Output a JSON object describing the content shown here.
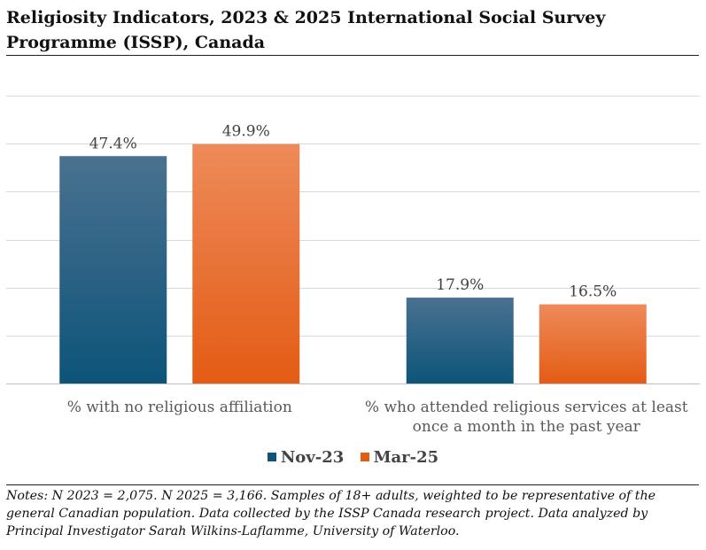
{
  "title": "Religiosity Indicators, 2023 & 2025 International Social Survey Programme (ISSP), Canada",
  "notes": "Notes: N 2023 = 2,075. N 2025 = 3,166. Samples of 18+ adults, weighted to be representative of the general Canadian population. Data collected by the ISSP Canada research project. Data analyzed by Principal Investigator Sarah Wilkins-Laflamme, University of Waterloo.",
  "colors": {
    "nov23_top": "#4b7190",
    "nov23_bottom": "#0c5479",
    "mar25_top": "#ee8a5a",
    "mar25_bottom": "#e35c14",
    "grid": "#d9d9d9",
    "axis": "#bfbfbf"
  },
  "chart_data": {
    "type": "bar",
    "categories": [
      [
        "% with no religious affiliation"
      ],
      [
        "% who attended religious services at least",
        "once a month in the past year"
      ]
    ],
    "series": [
      {
        "name": "Nov-23",
        "values": [
          47.4,
          17.9
        ],
        "labels": [
          "47.4%",
          "17.9%"
        ]
      },
      {
        "name": "Mar-25",
        "values": [
          49.9,
          16.5
        ],
        "labels": [
          "49.9%",
          "16.5%"
        ]
      }
    ],
    "ylim": [
      0,
      60
    ],
    "grid": true,
    "legend": "bottom",
    "xlabel": "",
    "ylabel": ""
  }
}
